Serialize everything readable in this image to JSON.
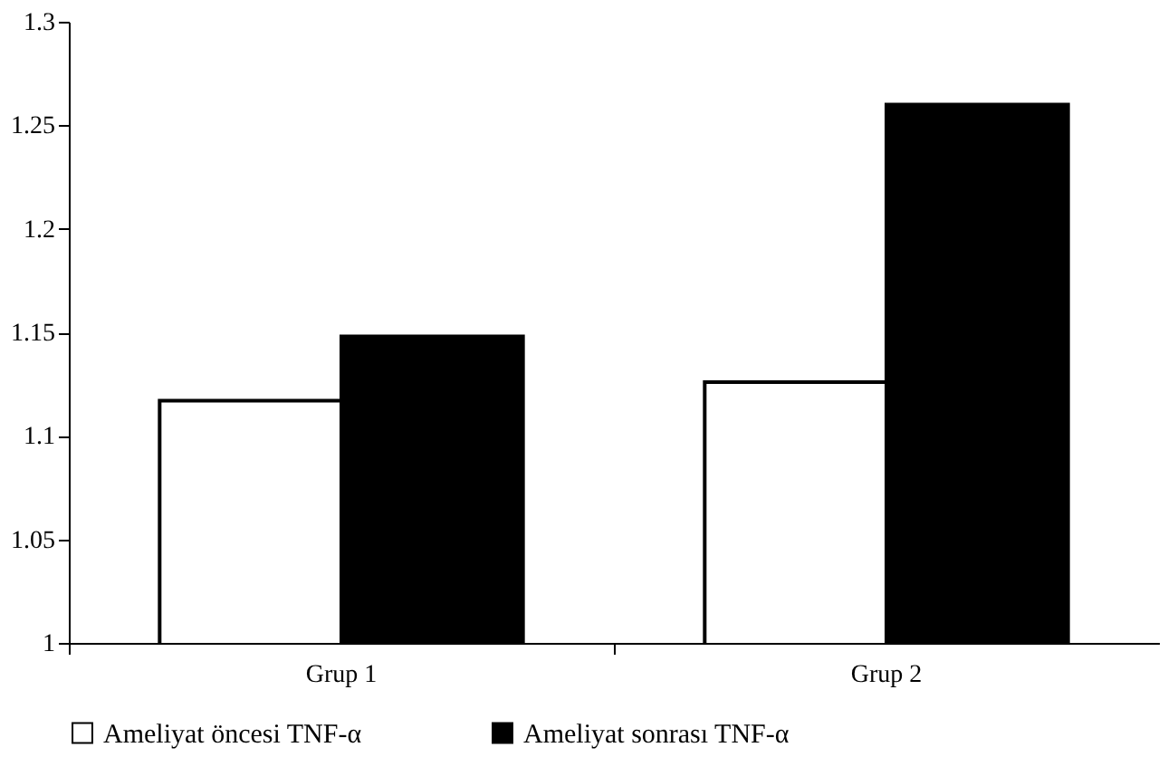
{
  "chart_data": {
    "type": "bar",
    "categories": [
      "Grup 1",
      "Grup 2"
    ],
    "series": [
      {
        "name": "Ameliyat öncesi TNF-α",
        "color": "#ffffff",
        "values": [
          1.117,
          1.126
        ]
      },
      {
        "name": "Ameliyat sonrası TNF-α",
        "color": "#000000",
        "values": [
          1.148,
          1.26
        ]
      }
    ],
    "ylim": [
      1,
      1.3
    ],
    "yticks": [
      1,
      1.05,
      1.1,
      1.15,
      1.2,
      1.25,
      1.3
    ],
    "grid": false,
    "legend": "bottom"
  }
}
